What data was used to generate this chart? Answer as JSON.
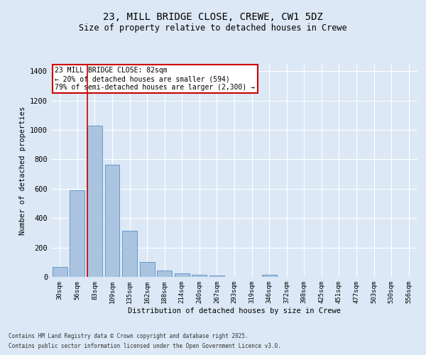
{
  "title": "23, MILL BRIDGE CLOSE, CREWE, CW1 5DZ",
  "subtitle": "Size of property relative to detached houses in Crewe",
  "xlabel": "Distribution of detached houses by size in Crewe",
  "ylabel": "Number of detached properties",
  "bar_color": "#aac4e0",
  "bar_edge_color": "#6699cc",
  "background_color": "#dce8f5",
  "grid_color": "#ffffff",
  "categories": [
    "30sqm",
    "56sqm",
    "83sqm",
    "109sqm",
    "135sqm",
    "162sqm",
    "188sqm",
    "214sqm",
    "240sqm",
    "267sqm",
    "293sqm",
    "319sqm",
    "346sqm",
    "372sqm",
    "398sqm",
    "425sqm",
    "451sqm",
    "477sqm",
    "503sqm",
    "530sqm",
    "556sqm"
  ],
  "values": [
    70,
    590,
    1030,
    765,
    315,
    100,
    42,
    22,
    15,
    10,
    0,
    0,
    15,
    0,
    0,
    0,
    0,
    0,
    0,
    0,
    0
  ],
  "vline_x_idx": 2,
  "vline_color": "#cc0000",
  "ylim": [
    0,
    1450
  ],
  "yticks": [
    0,
    200,
    400,
    600,
    800,
    1000,
    1200,
    1400
  ],
  "annotation_text": "23 MILL BRIDGE CLOSE: 82sqm\n← 20% of detached houses are smaller (594)\n79% of semi-detached houses are larger (2,300) →",
  "annotation_box_color": "#cc0000",
  "footer_line1": "Contains HM Land Registry data © Crown copyright and database right 2025.",
  "footer_line2": "Contains public sector information licensed under the Open Government Licence v3.0."
}
